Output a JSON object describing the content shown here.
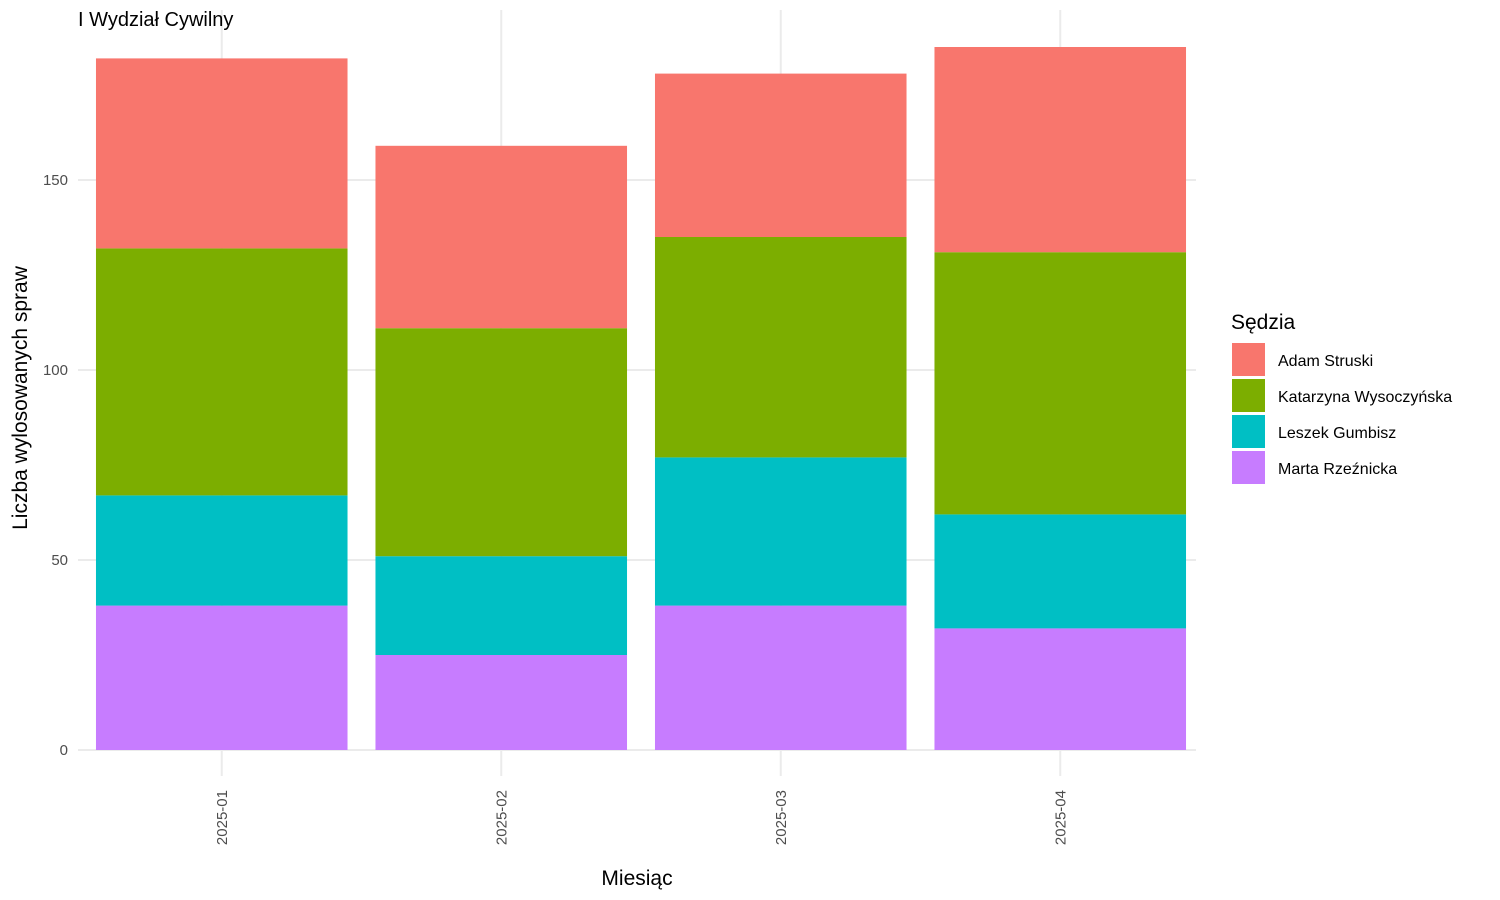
{
  "chart_data": {
    "type": "bar",
    "stacked": true,
    "title": "I Wydział Cywilny",
    "xlabel": "Miesiąc",
    "ylabel": "Liczba wylosowanych spraw",
    "categories": [
      "2025-01",
      "2025-02",
      "2025-03",
      "2025-04"
    ],
    "y_ticks": [
      0,
      50,
      100,
      150
    ],
    "ylim": [
      0,
      190
    ],
    "legend_title": "Sędzia",
    "legend_position": "right",
    "grid": true,
    "series": [
      {
        "name": "Marta Rzeźnicka",
        "color": "#C77CFF",
        "values": [
          38,
          25,
          38,
          32
        ]
      },
      {
        "name": "Leszek Gumbisz",
        "color": "#00BFC4",
        "values": [
          29,
          26,
          39,
          30
        ]
      },
      {
        "name": "Katarzyna Wysoczyńska",
        "color": "#7CAE00",
        "values": [
          65,
          60,
          58,
          69
        ]
      },
      {
        "name": "Adam Struski",
        "color": "#F8766D",
        "values": [
          50,
          48,
          43,
          54
        ]
      }
    ],
    "legend_order": [
      "Adam Struski",
      "Katarzyna Wysoczyńska",
      "Leszek Gumbisz",
      "Marta Rzeźnicka"
    ]
  }
}
